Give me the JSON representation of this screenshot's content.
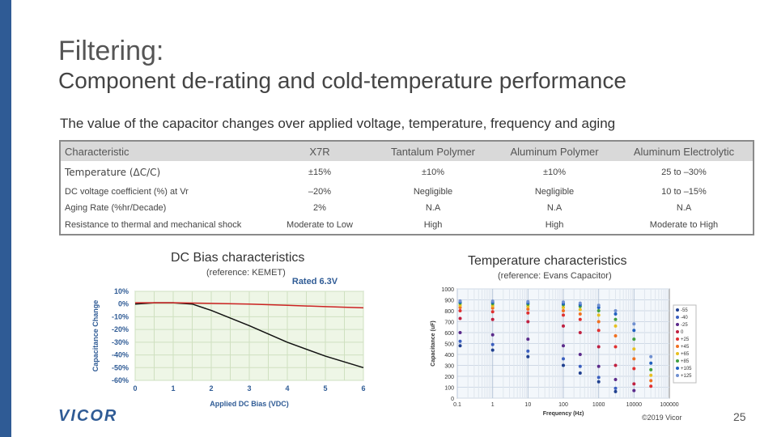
{
  "title": "Filtering:",
  "subtitle": "Component de-rating and cold-temperature performance",
  "intro": "The value of the capacitor changes over applied voltage, temperature, frequency and aging",
  "table": {
    "headers": [
      "Characteristic",
      "X7R",
      "Tantalum Polymer",
      "Aluminum Polymer",
      "Aluminum Electrolytic"
    ],
    "rows": [
      {
        "label": "Temperature (ΔC/C)",
        "values": [
          "±15%",
          "±10%",
          "±10%",
          "25 to –30%"
        ]
      },
      {
        "label": "DC voltage coefficient (%) at Vr",
        "values": [
          "–20%",
          "Negligible",
          "Negligible",
          "10 to –15%"
        ]
      },
      {
        "label": "Aging Rate (%hr/Decade)",
        "values": [
          "2%",
          "N.A",
          "N.A",
          "N.A"
        ]
      },
      {
        "label": "Resistance to thermal and mechanical shock",
        "values": [
          "Moderate to Low",
          "High",
          "High",
          "Moderate to High"
        ]
      }
    ]
  },
  "dc_bias": {
    "title": "DC Bias characteristics",
    "reference": "(reference: KEMET)",
    "rated": "Rated 6.3V"
  },
  "temperature": {
    "title": "Temperature characteristics",
    "reference": "(reference: Evans Capacitor)"
  },
  "chart_data": [
    {
      "type": "line",
      "title": "Rated 6.3V",
      "xlabel": "Applied DC Bias (VDC)",
      "ylabel": "Capacitance Change",
      "x_ticks": [
        "0",
        "1",
        "2",
        "3",
        "4",
        "5",
        "6"
      ],
      "y_ticks": [
        "10%",
        "0%",
        "-10%",
        "-20%",
        "-30%",
        "-40%",
        "-50%",
        "-60%"
      ],
      "xlim": [
        0,
        6
      ],
      "ylim": [
        -60,
        10
      ],
      "series": [
        {
          "name": "black",
          "color": "#111111",
          "x": [
            0,
            0.5,
            1,
            1.5,
            2,
            3,
            4,
            5,
            6
          ],
          "y": [
            0,
            1,
            1,
            0,
            -5,
            -17,
            -30,
            -41,
            -50
          ]
        },
        {
          "name": "red",
          "color": "#cc2222",
          "x": [
            0,
            1,
            2,
            3,
            4,
            5,
            6
          ],
          "y": [
            1,
            1,
            0.5,
            0,
            -1,
            -2,
            -3
          ]
        }
      ]
    },
    {
      "type": "scatter",
      "title": "",
      "xlabel": "Frequency (Hz)",
      "ylabel": "Capacitance (uF)",
      "x_scale": "log",
      "x_ticks": [
        "0.1",
        "1",
        "10",
        "100",
        "1000",
        "10000",
        "100000"
      ],
      "y_ticks": [
        "0",
        "100",
        "200",
        "300",
        "400",
        "500",
        "600",
        "700",
        "800",
        "900",
        "1000"
      ],
      "xlim": [
        0.1,
        100000
      ],
      "ylim": [
        0,
        1000
      ],
      "legend": [
        "-55",
        "-40",
        "-25",
        "0",
        "+25",
        "+45",
        "+65",
        "+85",
        "+105",
        "+125"
      ],
      "series": [
        {
          "name": "-55",
          "color": "#1f3f8f",
          "x": [
            0.12,
            1,
            10,
            100,
            300,
            1000,
            3000
          ],
          "y": [
            480,
            440,
            380,
            300,
            230,
            150,
            60
          ]
        },
        {
          "name": "-40",
          "color": "#3b5fbf",
          "x": [
            0.12,
            1,
            10,
            100,
            300,
            1000,
            3000
          ],
          "y": [
            520,
            490,
            430,
            360,
            290,
            190,
            90
          ]
        },
        {
          "name": "-25",
          "color": "#5b2a8a",
          "x": [
            0.12,
            1,
            10,
            100,
            300,
            1000,
            3000,
            10000
          ],
          "y": [
            600,
            580,
            540,
            480,
            400,
            290,
            170,
            70
          ]
        },
        {
          "name": "0",
          "color": "#c02040",
          "x": [
            0.12,
            1,
            10,
            100,
            300,
            1000,
            3000,
            10000
          ],
          "y": [
            730,
            720,
            700,
            660,
            600,
            470,
            300,
            130
          ]
        },
        {
          "name": "+25",
          "color": "#e03030",
          "x": [
            0.12,
            1,
            10,
            100,
            300,
            1000,
            3000,
            10000,
            30000
          ],
          "y": [
            800,
            790,
            780,
            760,
            720,
            620,
            470,
            270,
            110
          ]
        },
        {
          "name": "+45",
          "color": "#f07020",
          "x": [
            0.12,
            1,
            10,
            100,
            300,
            1000,
            3000,
            10000,
            30000
          ],
          "y": [
            830,
            825,
            815,
            800,
            770,
            700,
            570,
            360,
            160
          ]
        },
        {
          "name": "+65",
          "color": "#e8c020",
          "x": [
            0.12,
            1,
            10,
            100,
            300,
            1000,
            3000,
            10000,
            30000
          ],
          "y": [
            850,
            845,
            840,
            830,
            810,
            760,
            660,
            450,
            210
          ]
        },
        {
          "name": "+85",
          "color": "#40a040",
          "x": [
            0.12,
            1,
            10,
            100,
            300,
            1000,
            3000,
            10000,
            30000
          ],
          "y": [
            870,
            865,
            860,
            855,
            840,
            800,
            720,
            540,
            260
          ]
        },
        {
          "name": "+105",
          "color": "#2060c0",
          "x": [
            0.12,
            1,
            10,
            100,
            300,
            1000,
            3000,
            10000,
            30000
          ],
          "y": [
            880,
            878,
            872,
            865,
            855,
            830,
            770,
            620,
            320
          ]
        },
        {
          "name": "+125",
          "color": "#7090d0",
          "x": [
            0.12,
            1,
            10,
            100,
            300,
            1000,
            3000,
            10000,
            30000
          ],
          "y": [
            890,
            888,
            884,
            880,
            870,
            850,
            800,
            680,
            380
          ]
        }
      ]
    }
  ],
  "footer": {
    "logo": "VICOR",
    "copyright": "©2019 Vicor",
    "page": "25"
  },
  "colors": {
    "brand": "#2f5b95"
  }
}
